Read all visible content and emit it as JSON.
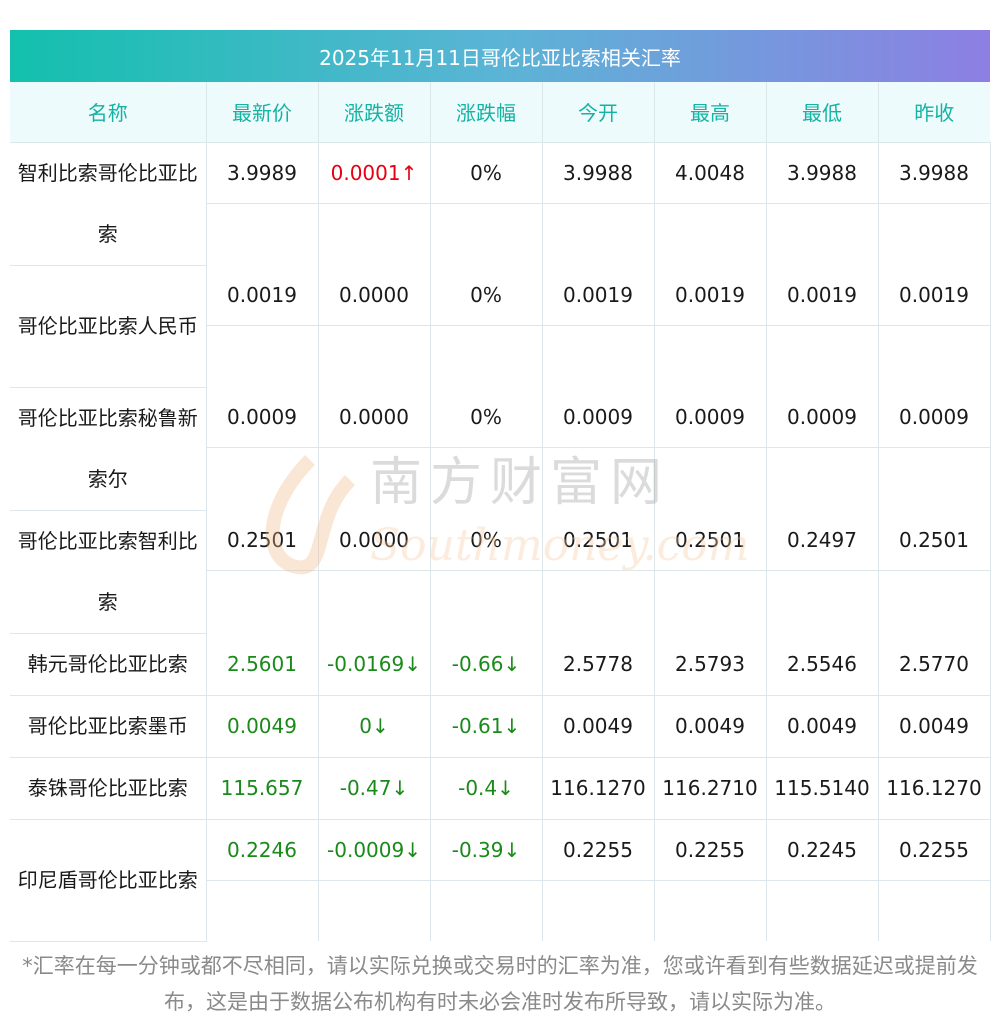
{
  "title": "2025年11月11日哥伦比亚比索相关汇率",
  "headers": [
    "名称",
    "最新价",
    "涨跌额",
    "涨跌幅",
    "今开",
    "最高",
    "最低",
    "昨收"
  ],
  "rows": [
    {
      "name": "智利比索哥伦比亚比索",
      "latest": "3.9989",
      "change": "0.0001↑",
      "pct": "0%",
      "open": "3.9988",
      "high": "4.0048",
      "low": "3.9988",
      "prev": "3.9988",
      "trend": "up"
    },
    {
      "name": "哥伦比亚比索人民币",
      "latest": "0.0019",
      "change": "0.0000",
      "pct": "0%",
      "open": "0.0019",
      "high": "0.0019",
      "low": "0.0019",
      "prev": "0.0019",
      "trend": "flat"
    },
    {
      "name": "哥伦比亚比索秘鲁新索尔",
      "latest": "0.0009",
      "change": "0.0000",
      "pct": "0%",
      "open": "0.0009",
      "high": "0.0009",
      "low": "0.0009",
      "prev": "0.0009",
      "trend": "flat"
    },
    {
      "name": "哥伦比亚比索智利比索",
      "latest": "0.2501",
      "change": "0.0000",
      "pct": "0%",
      "open": "0.2501",
      "high": "0.2501",
      "low": "0.2497",
      "prev": "0.2501",
      "trend": "flat"
    },
    {
      "name": "韩元哥伦比亚比索",
      "latest": "2.5601",
      "change": "-0.0169↓",
      "pct": "-0.66↓",
      "open": "2.5778",
      "high": "2.5793",
      "low": "2.5546",
      "prev": "2.5770",
      "trend": "down"
    },
    {
      "name": "哥伦比亚比索墨币",
      "latest": "0.0049",
      "change": "0↓",
      "pct": "-0.61↓",
      "open": "0.0049",
      "high": "0.0049",
      "low": "0.0049",
      "prev": "0.0049",
      "trend": "down"
    },
    {
      "name": "泰铢哥伦比亚比索",
      "latest": "115.657",
      "change": "-0.47↓",
      "pct": "-0.4↓",
      "open": "116.1270",
      "high": "116.2710",
      "low": "115.5140",
      "prev": "116.1270",
      "trend": "down"
    },
    {
      "name": "印尼盾哥伦比亚比索",
      "latest": "0.2246",
      "change": "-0.0009↓",
      "pct": "-0.39↓",
      "open": "0.2255",
      "high": "0.2255",
      "low": "0.2245",
      "prev": "0.2255",
      "trend": "down"
    }
  ],
  "watermark": {
    "cn": "南方财富网",
    "en": "Southmoney.com"
  },
  "footnote": "*汇率在每一分钟或都不尽相同，请以实际兑换或交易时的汇率为准，您或许看到有些数据延迟或提前发布，这是由于数据公布机构有时未必会准时发布所导致，请以实际为准。",
  "colors": {
    "up": "#e60012",
    "down": "#1a8a1a",
    "header_text": "#14b3a3",
    "title_gradient_start": "#13c0ad",
    "title_gradient_end": "#8d7fe3"
  }
}
